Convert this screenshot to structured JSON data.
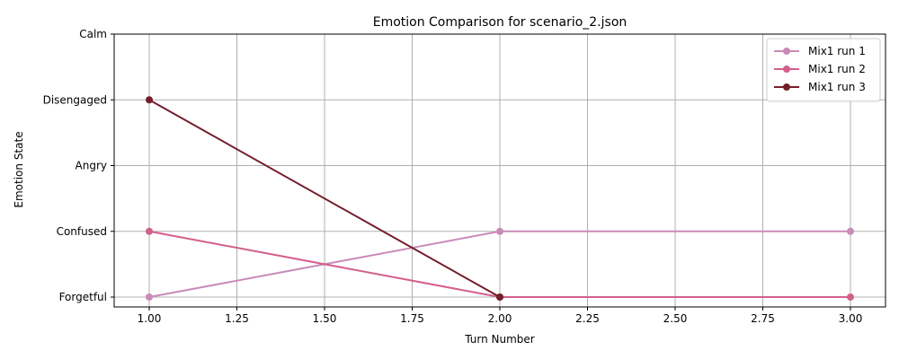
{
  "chart_data": {
    "type": "line",
    "title": "Emotion Comparison for scenario_2.json",
    "xlabel": "Turn Number",
    "ylabel": "Emotion State",
    "xlim": [
      0.9,
      3.1
    ],
    "ylim": [
      -0.15,
      4.0
    ],
    "x_ticks": [
      1.0,
      1.25,
      1.5,
      1.75,
      2.0,
      2.25,
      2.5,
      2.75,
      3.0
    ],
    "x_tick_labels": [
      "1.00",
      "1.25",
      "1.50",
      "1.75",
      "2.00",
      "2.25",
      "2.50",
      "2.75",
      "3.00"
    ],
    "y_categories": [
      "Forgetful",
      "Confused",
      "Angry",
      "Disengaged",
      "Calm"
    ],
    "grid": true,
    "legend_position": "top-right",
    "series": [
      {
        "name": "Mix1 run 1",
        "color": "#c98bb8",
        "x": [
          1,
          2,
          3
        ],
        "y": [
          "Forgetful",
          "Confused",
          "Confused"
        ]
      },
      {
        "name": "Mix1 run 2",
        "color": "#d35f8d",
        "x": [
          1,
          2,
          3
        ],
        "y": [
          "Confused",
          "Forgetful",
          "Forgetful"
        ]
      },
      {
        "name": "Mix1 run 3",
        "color": "#741e2b",
        "x": [
          1,
          2
        ],
        "y": [
          "Disengaged",
          "Forgetful"
        ]
      }
    ]
  }
}
